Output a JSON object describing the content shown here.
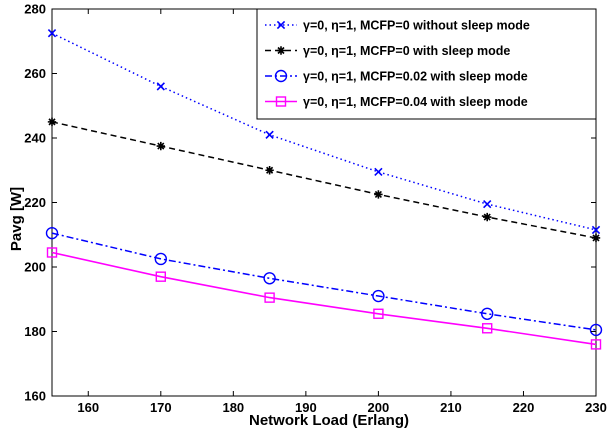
{
  "chart_data": {
    "type": "line",
    "title": "",
    "xlabel": "Network Load (Erlang)",
    "ylabel": "Pavg [W]",
    "xlim": [
      155,
      230
    ],
    "ylim": [
      160,
      280
    ],
    "x": [
      155,
      170,
      185,
      200,
      215,
      230
    ],
    "xticks": [
      160,
      170,
      180,
      190,
      200,
      210,
      220,
      230
    ],
    "yticks": [
      160,
      180,
      200,
      220,
      240,
      260,
      280
    ],
    "grid": false,
    "legend_position": "top-right",
    "series": [
      {
        "name": "γ=0, η=1, MCFP=0 without sleep mode",
        "values": [
          272.5,
          256,
          241,
          229.5,
          219.5,
          211.5
        ],
        "color": "#0000ff",
        "line_style": "dotted",
        "marker": "x"
      },
      {
        "name": "γ=0, η=1, MCFP=0 with sleep mode",
        "values": [
          245,
          237.5,
          230,
          222.5,
          215.5,
          209
        ],
        "color": "#000000",
        "line_style": "dashed",
        "marker": "asterisk"
      },
      {
        "name": "γ=0, η=1, MCFP=0.02 with sleep mode",
        "values": [
          210.5,
          202.5,
          196.5,
          191,
          185.5,
          180.5
        ],
        "color": "#0000ff",
        "line_style": "dash-dot",
        "marker": "circle"
      },
      {
        "name": "γ=0, η=1, MCFP=0.04 with sleep mode",
        "values": [
          204.5,
          197,
          190.5,
          185.5,
          181,
          176
        ],
        "color": "#ff00ff",
        "line_style": "solid",
        "marker": "square"
      }
    ]
  }
}
